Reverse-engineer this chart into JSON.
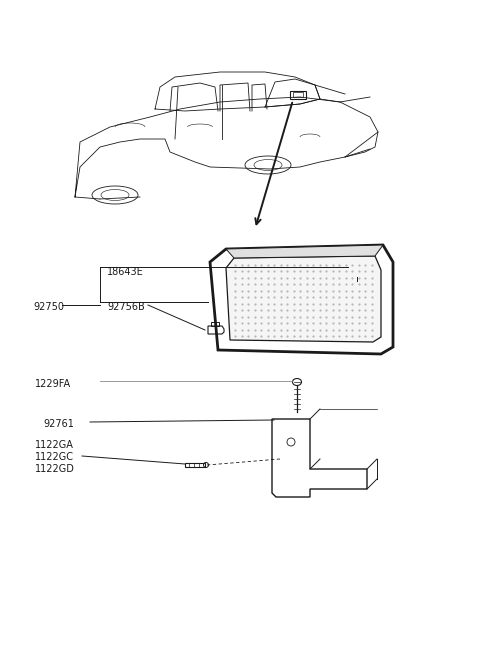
{
  "bg_color": "#ffffff",
  "line_color": "#1a1a1a",
  "gray_color": "#888888",
  "text_color": "#1a1a1a",
  "fig_width": 4.8,
  "fig_height": 6.57,
  "dpi": 100,
  "labels": {
    "part1": "92750",
    "part2": "92756B",
    "part3": "18643E",
    "part4": "1229FA",
    "part5": "92761",
    "part6a": "1122GA",
    "part6b": "1122GC",
    "part6c": "1122GD"
  }
}
